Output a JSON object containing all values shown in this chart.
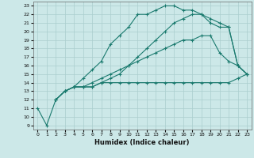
{
  "xlabel": "Humidex (Indice chaleur)",
  "background_color": "#cce8e8",
  "grid_color": "#aacece",
  "line_color": "#1a7a6e",
  "xlim": [
    -0.5,
    23.5
  ],
  "ylim": [
    8.5,
    23.5
  ],
  "xticks": [
    0,
    1,
    2,
    3,
    4,
    5,
    6,
    7,
    8,
    9,
    10,
    11,
    12,
    13,
    14,
    15,
    16,
    17,
    18,
    19,
    20,
    21,
    22,
    23
  ],
  "yticks": [
    9,
    10,
    11,
    12,
    13,
    14,
    15,
    16,
    17,
    18,
    19,
    20,
    21,
    22,
    23
  ],
  "line1_x": [
    0,
    1,
    2,
    3,
    4,
    5,
    6,
    7,
    8,
    9,
    10,
    11,
    12,
    13,
    14,
    15,
    16,
    17,
    18,
    19,
    20,
    21,
    22,
    23
  ],
  "line1_y": [
    11,
    9,
    12,
    13,
    13.5,
    14.5,
    15.5,
    16.5,
    18.5,
    19.5,
    20.5,
    22,
    22,
    22.5,
    23,
    23,
    22.5,
    22.5,
    22,
    21,
    20.5,
    20.5,
    16,
    15
  ],
  "line2_x": [
    2,
    3,
    4,
    5,
    6,
    7,
    8,
    9,
    10,
    11,
    12,
    13,
    14,
    15,
    16,
    17,
    18,
    19,
    20,
    21,
    22,
    23
  ],
  "line2_y": [
    12,
    13,
    13.5,
    13.5,
    13.5,
    14,
    14,
    14,
    14,
    14,
    14,
    14,
    14,
    14,
    14,
    14,
    14,
    14,
    14,
    14,
    14.5,
    15
  ],
  "line3_x": [
    2,
    3,
    4,
    5,
    6,
    7,
    8,
    9,
    10,
    11,
    12,
    13,
    14,
    15,
    16,
    17,
    18,
    19,
    20,
    21,
    22,
    23
  ],
  "line3_y": [
    12,
    13,
    13.5,
    13.5,
    14,
    14.5,
    15,
    15.5,
    16,
    16.5,
    17,
    17.5,
    18,
    18.5,
    19,
    19,
    19.5,
    19.5,
    17.5,
    16.5,
    16,
    15
  ],
  "line4_x": [
    2,
    3,
    4,
    5,
    6,
    7,
    8,
    9,
    10,
    11,
    12,
    13,
    14,
    15,
    16,
    17,
    18,
    19,
    20,
    21,
    22,
    23
  ],
  "line4_y": [
    12,
    13,
    13.5,
    13.5,
    13.5,
    14,
    14.5,
    15,
    16,
    17,
    18,
    19,
    20,
    21,
    21.5,
    22,
    22,
    21.5,
    21,
    20.5,
    16,
    15
  ]
}
